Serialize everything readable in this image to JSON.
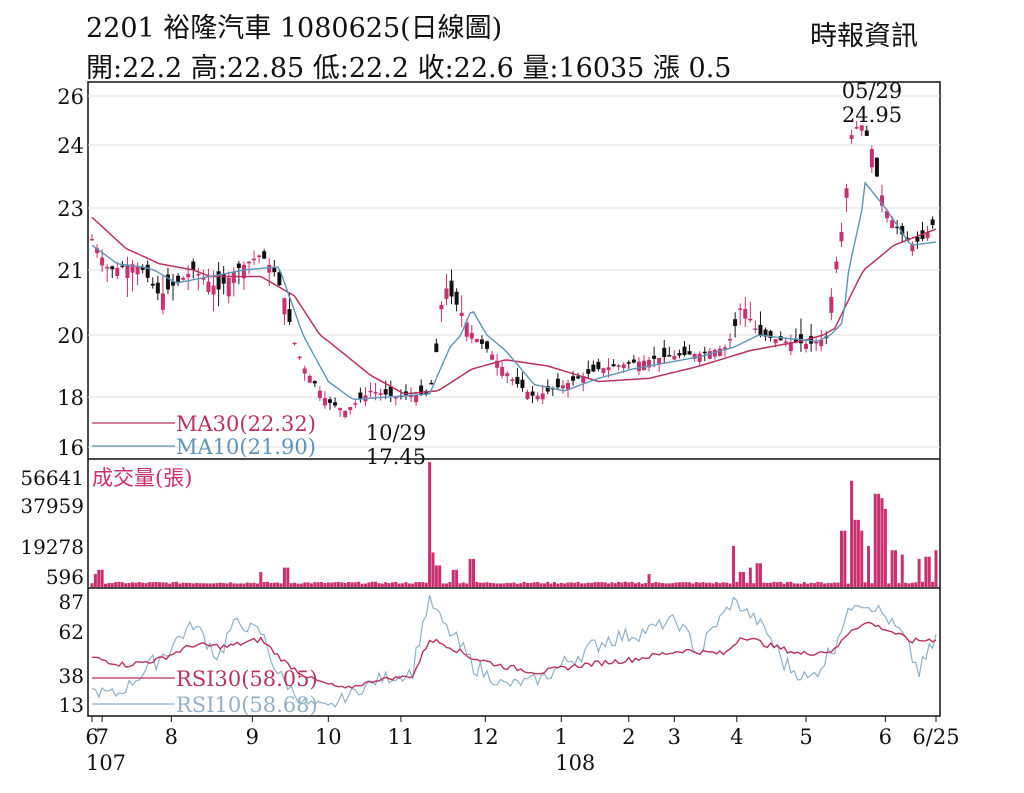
{
  "header": {
    "title": "2201  裕隆汽車 1080625(日線圖)",
    "ohlc": "開:22.2 高:22.85 低:22.2 收:22.6 量:16035 漲 0.5",
    "source": "時報資訊"
  },
  "chart_data": {
    "type": "candlestick",
    "colors": {
      "up": "#c8306f",
      "down": "#111111",
      "ma30": "#b8325e",
      "ma10": "#5f94b5",
      "volume": "#c8306f",
      "rsi30": "#b8325e",
      "rsi10": "#8fb0c8",
      "grid": "#e0e0e0"
    },
    "price_panel": {
      "y_ticks": [
        "26",
        "24",
        "23",
        "21",
        "20",
        "18",
        "16"
      ],
      "ylim": [
        16,
        26
      ],
      "legend": [
        {
          "label": "MA30(22.32)",
          "value": 22.32
        },
        {
          "label": "MA10(21.90)",
          "value": 21.9
        }
      ],
      "annotations": [
        {
          "date": "05/29",
          "value": "24.95",
          "price": 24.95
        },
        {
          "date": "10/29",
          "value": "17.45",
          "price": 17.45
        }
      ],
      "series_price_keypoints": [
        [
          0,
          22.0
        ],
        [
          10,
          21.0
        ],
        [
          25,
          21.2
        ],
        [
          40,
          20.6
        ],
        [
          60,
          21.0
        ],
        [
          75,
          20.7
        ],
        [
          85,
          21.0
        ],
        [
          100,
          21.5
        ],
        [
          115,
          20.5
        ],
        [
          125,
          19.0
        ],
        [
          140,
          17.8
        ],
        [
          150,
          17.45
        ],
        [
          165,
          18.2
        ],
        [
          180,
          18.0
        ],
        [
          200,
          18.1
        ],
        [
          208,
          20.8
        ],
        [
          220,
          20.3
        ],
        [
          235,
          19.5
        ],
        [
          250,
          18.5
        ],
        [
          262,
          18.0
        ],
        [
          280,
          18.4
        ],
        [
          300,
          18.9
        ],
        [
          320,
          19.1
        ],
        [
          340,
          19.3
        ],
        [
          360,
          19.4
        ],
        [
          375,
          19.6
        ],
        [
          385,
          20.5
        ],
        [
          395,
          20.0
        ],
        [
          410,
          19.8
        ],
        [
          425,
          19.7
        ],
        [
          435,
          19.9
        ],
        [
          442,
          21.5
        ],
        [
          450,
          24.4
        ],
        [
          455,
          24.95
        ],
        [
          465,
          23.5
        ],
        [
          475,
          22.5
        ],
        [
          485,
          21.8
        ],
        [
          492,
          22.0
        ],
        [
          500,
          22.6
        ]
      ],
      "ma10_keypoints": [
        [
          0,
          21.8
        ],
        [
          15,
          21.2
        ],
        [
          30,
          21.1
        ],
        [
          50,
          20.8
        ],
        [
          70,
          20.9
        ],
        [
          90,
          21.0
        ],
        [
          110,
          21.1
        ],
        [
          125,
          20.0
        ],
        [
          140,
          18.5
        ],
        [
          155,
          17.9
        ],
        [
          175,
          18.0
        ],
        [
          200,
          18.1
        ],
        [
          212,
          19.6
        ],
        [
          225,
          20.4
        ],
        [
          245,
          19.5
        ],
        [
          262,
          18.4
        ],
        [
          280,
          18.2
        ],
        [
          300,
          18.6
        ],
        [
          320,
          18.9
        ],
        [
          340,
          19.1
        ],
        [
          360,
          19.3
        ],
        [
          380,
          19.6
        ],
        [
          395,
          20.0
        ],
        [
          410,
          19.9
        ],
        [
          430,
          19.8
        ],
        [
          445,
          20.2
        ],
        [
          458,
          23.4
        ],
        [
          470,
          23.0
        ],
        [
          485,
          21.8
        ],
        [
          500,
          21.9
        ]
      ],
      "ma30_keypoints": [
        [
          0,
          22.7
        ],
        [
          20,
          21.7
        ],
        [
          40,
          21.2
        ],
        [
          70,
          20.9
        ],
        [
          100,
          20.9
        ],
        [
          120,
          20.6
        ],
        [
          140,
          19.8
        ],
        [
          165,
          18.7
        ],
        [
          185,
          18.1
        ],
        [
          205,
          18.2
        ],
        [
          225,
          18.9
        ],
        [
          245,
          19.2
        ],
        [
          270,
          19.0
        ],
        [
          300,
          18.5
        ],
        [
          330,
          18.6
        ],
        [
          360,
          19.0
        ],
        [
          390,
          19.5
        ],
        [
          420,
          19.8
        ],
        [
          440,
          20.1
        ],
        [
          455,
          20.9
        ],
        [
          475,
          21.8
        ],
        [
          500,
          22.32
        ]
      ]
    },
    "volume_panel": {
      "label": "成交量(張)",
      "y_ticks": [
        "56641",
        "37959",
        "19278",
        "596"
      ],
      "ylim": [
        0,
        56641
      ],
      "spikes": [
        [
          3,
          5000
        ],
        [
          5,
          7000
        ],
        [
          100,
          6000
        ],
        [
          115,
          8000
        ],
        [
          200,
          56641
        ],
        [
          202,
          15000
        ],
        [
          205,
          9000
        ],
        [
          215,
          7000
        ],
        [
          225,
          12000
        ],
        [
          330,
          5000
        ],
        [
          380,
          18000
        ],
        [
          385,
          6000
        ],
        [
          390,
          8000
        ],
        [
          395,
          10000
        ],
        [
          445,
          25000
        ],
        [
          450,
          48000
        ],
        [
          453,
          30000
        ],
        [
          455,
          25000
        ],
        [
          460,
          18000
        ],
        [
          465,
          42000
        ],
        [
          468,
          40000
        ],
        [
          470,
          35000
        ],
        [
          475,
          16000
        ],
        [
          480,
          14000
        ],
        [
          490,
          12000
        ],
        [
          495,
          13000
        ],
        [
          500,
          16035
        ]
      ]
    },
    "rsi_panel": {
      "y_ticks": [
        "87",
        "62",
        "38",
        "13"
      ],
      "ylim": [
        5,
        95
      ],
      "legend": [
        {
          "label": "RSI30(58.05)",
          "value": 58.05
        },
        {
          "label": "RSI10(58.68)",
          "value": 58.68
        }
      ],
      "rsi30_keypoints": [
        [
          0,
          48
        ],
        [
          20,
          44
        ],
        [
          40,
          47
        ],
        [
          60,
          55
        ],
        [
          80,
          54
        ],
        [
          100,
          58
        ],
        [
          115,
          45
        ],
        [
          135,
          33
        ],
        [
          150,
          27
        ],
        [
          170,
          35
        ],
        [
          190,
          38
        ],
        [
          200,
          58
        ],
        [
          210,
          55
        ],
        [
          225,
          48
        ],
        [
          245,
          43
        ],
        [
          265,
          40
        ],
        [
          290,
          44
        ],
        [
          320,
          47
        ],
        [
          350,
          52
        ],
        [
          375,
          50
        ],
        [
          385,
          60
        ],
        [
          400,
          55
        ],
        [
          420,
          50
        ],
        [
          440,
          52
        ],
        [
          450,
          64
        ],
        [
          460,
          70
        ],
        [
          470,
          64
        ],
        [
          485,
          57
        ],
        [
          500,
          58.05
        ]
      ],
      "rsi10_keypoints": [
        [
          0,
          25
        ],
        [
          15,
          22
        ],
        [
          30,
          40
        ],
        [
          45,
          52
        ],
        [
          60,
          68
        ],
        [
          75,
          48
        ],
        [
          85,
          70
        ],
        [
          100,
          62
        ],
        [
          110,
          40
        ],
        [
          125,
          15
        ],
        [
          140,
          10
        ],
        [
          150,
          20
        ],
        [
          170,
          35
        ],
        [
          190,
          40
        ],
        [
          200,
          88
        ],
        [
          210,
          65
        ],
        [
          225,
          45
        ],
        [
          245,
          30
        ],
        [
          265,
          35
        ],
        [
          285,
          48
        ],
        [
          305,
          58
        ],
        [
          325,
          62
        ],
        [
          345,
          72
        ],
        [
          360,
          50
        ],
        [
          380,
          88
        ],
        [
          395,
          70
        ],
        [
          410,
          45
        ],
        [
          425,
          35
        ],
        [
          440,
          55
        ],
        [
          452,
          88
        ],
        [
          465,
          82
        ],
        [
          480,
          60
        ],
        [
          490,
          40
        ],
        [
          500,
          58.68
        ]
      ]
    },
    "x_ticks": [
      {
        "label": "6",
        "pos": 0
      },
      {
        "label": "7",
        "pos": 6
      },
      {
        "label": "8",
        "pos": 47
      },
      {
        "label": "9",
        "pos": 95
      },
      {
        "label": "10",
        "pos": 140
      },
      {
        "label": "11",
        "pos": 183
      },
      {
        "label": "12",
        "pos": 233
      },
      {
        "label": "1",
        "pos": 278
      },
      {
        "label": "2",
        "pos": 318
      },
      {
        "label": "3",
        "pos": 345
      },
      {
        "label": "4",
        "pos": 382
      },
      {
        "label": "5",
        "pos": 423
      },
      {
        "label": "6",
        "pos": 470
      },
      {
        "label": "6/25",
        "pos": 500
      }
    ],
    "year_labels": [
      {
        "label": "107",
        "pos": 0
      },
      {
        "label": "108",
        "pos": 278
      }
    ]
  }
}
